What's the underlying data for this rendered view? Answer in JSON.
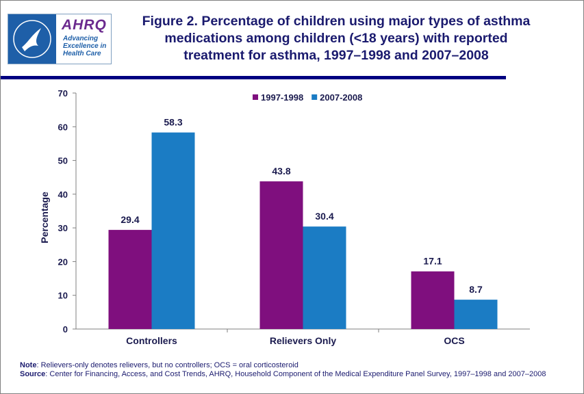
{
  "logo": {
    "name": "AHRQ",
    "tagline": [
      "Advancing",
      "Excellence in",
      "Health Care"
    ]
  },
  "chart_data": {
    "type": "bar",
    "title": "Figure 2. Percentage of children using major types of asthma medications among children (<18 years) with reported treatment for asthma, 1997–1998 and 2007–2008",
    "y_label": "Percentage",
    "categories": [
      "Controllers",
      "Relievers Only",
      "OCS"
    ],
    "series": [
      {
        "name": "1997-1998",
        "color": "#7f0f7e",
        "values": [
          29.4,
          43.8,
          17.1
        ]
      },
      {
        "name": "2007-2008",
        "color": "#1b7cc4",
        "values": [
          58.3,
          30.4,
          8.7
        ]
      }
    ],
    "ylim": [
      0,
      70
    ],
    "yticks": [
      0,
      10,
      20,
      30,
      40,
      50,
      60,
      70
    ],
    "grid": false,
    "legend": "top"
  },
  "notes": [
    {
      "label": "Note",
      "text": ": Relievers-only denotes relievers, but no controllers; OCS = oral corticosteroid"
    },
    {
      "label": "Source",
      "text": ": Center for Financing, Access, and Cost Trends, AHRQ,  Household Component of the Medical Expenditure Panel Survey,  1997–1998 and 2007–2008"
    }
  ]
}
